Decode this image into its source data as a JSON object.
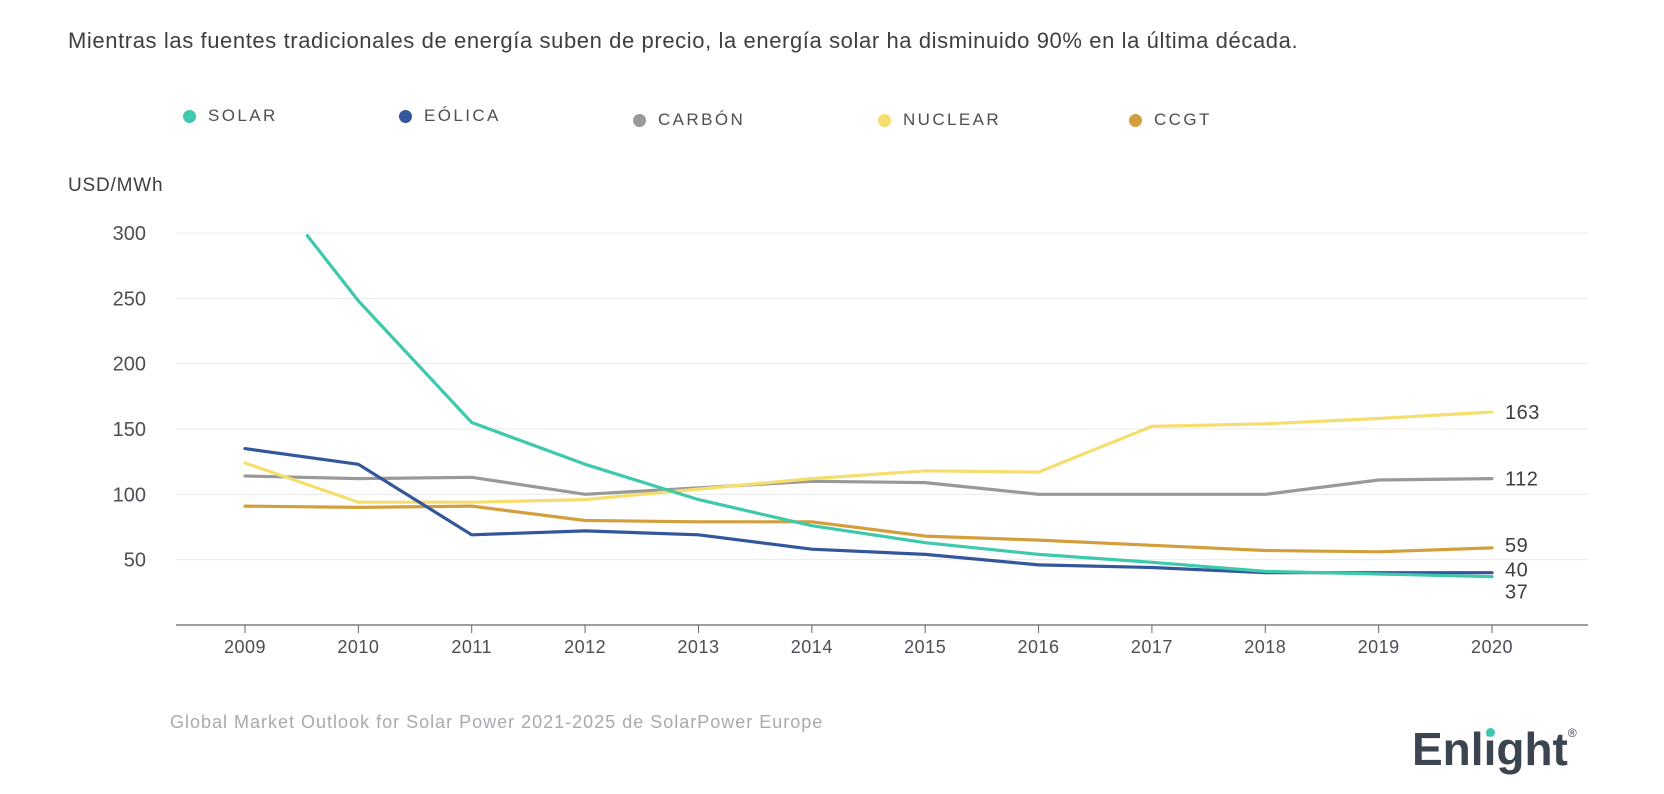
{
  "headline": "Mientras las fuentes tradicionales de energía suben de precio, la energía solar ha disminuido 90% en la última década.",
  "source": "Global Market Outlook for Solar Power 2021-2025 de SolarPower Europe",
  "brand": {
    "name_main": "Enl",
    "name_i": "i",
    "name_tail": "ght",
    "registered": "®"
  },
  "colors": {
    "solar": "#3ec9ad",
    "eolica": "#34569a",
    "carbon": "#999999",
    "nuclear": "#f6de6e",
    "ccgt": "#d29f3c",
    "grid": "#e9e9e9",
    "axis": "#666666",
    "text": "#3b3f44"
  },
  "chart_data": {
    "type": "line",
    "title": "",
    "ylabel": "USD/MWh",
    "xlabel": "",
    "categories": [
      "2009",
      "2010",
      "2011",
      "2012",
      "2013",
      "2014",
      "2015",
      "2016",
      "2017",
      "2018",
      "2019",
      "2020"
    ],
    "yticks": [
      50,
      100,
      150,
      200,
      250,
      300
    ],
    "ylim": [
      0,
      300
    ],
    "grid": true,
    "legend_position": "top",
    "series": [
      {
        "key": "solar",
        "name": "SOLAR",
        "color": "#3ec9ad",
        "x": [
          2009.55,
          2010,
          2011,
          2012,
          2013,
          2014,
          2015,
          2016,
          2017,
          2018,
          2019,
          2020
        ],
        "values": [
          298,
          248,
          155,
          123,
          96,
          76,
          63,
          54,
          48,
          41,
          39,
          37
        ]
      },
      {
        "key": "eolica",
        "name": "EÓLICA",
        "color": "#34569a",
        "x": [
          2009,
          2010,
          2011,
          2012,
          2013,
          2014,
          2015,
          2016,
          2017,
          2018,
          2019,
          2020
        ],
        "values": [
          135,
          123,
          69,
          72,
          69,
          58,
          54,
          46,
          44,
          40,
          40,
          40
        ]
      },
      {
        "key": "carbon",
        "name": "CARBÓN",
        "color": "#999999",
        "x": [
          2009,
          2010,
          2011,
          2012,
          2013,
          2014,
          2015,
          2016,
          2017,
          2018,
          2019,
          2020
        ],
        "values": [
          114,
          112,
          113,
          100,
          105,
          110,
          109,
          100,
          100,
          100,
          111,
          112
        ]
      },
      {
        "key": "nuclear",
        "name": "NUCLEAR",
        "color": "#f6de6e",
        "x": [
          2009,
          2010,
          2011,
          2012,
          2013,
          2014,
          2015,
          2016,
          2017,
          2018,
          2019,
          2020
        ],
        "values": [
          124,
          94,
          94,
          96,
          104,
          112,
          118,
          117,
          152,
          154,
          158,
          163
        ]
      },
      {
        "key": "ccgt",
        "name": "CCGT",
        "color": "#d29f3c",
        "x": [
          2009,
          2010,
          2011,
          2012,
          2013,
          2014,
          2015,
          2016,
          2017,
          2018,
          2019,
          2020
        ],
        "values": [
          91,
          90,
          91,
          80,
          79,
          79,
          68,
          65,
          61,
          57,
          56,
          59
        ]
      }
    ],
    "end_labels": [
      {
        "series": "nuclear",
        "text": "163",
        "value": 163
      },
      {
        "series": "carbon",
        "text": "112",
        "value": 112
      },
      {
        "series": "ccgt",
        "text": "59",
        "value": 59
      },
      {
        "series": "eolica",
        "text": "40",
        "value": 40
      },
      {
        "series": "solar",
        "text": "37",
        "value": 37
      }
    ]
  }
}
